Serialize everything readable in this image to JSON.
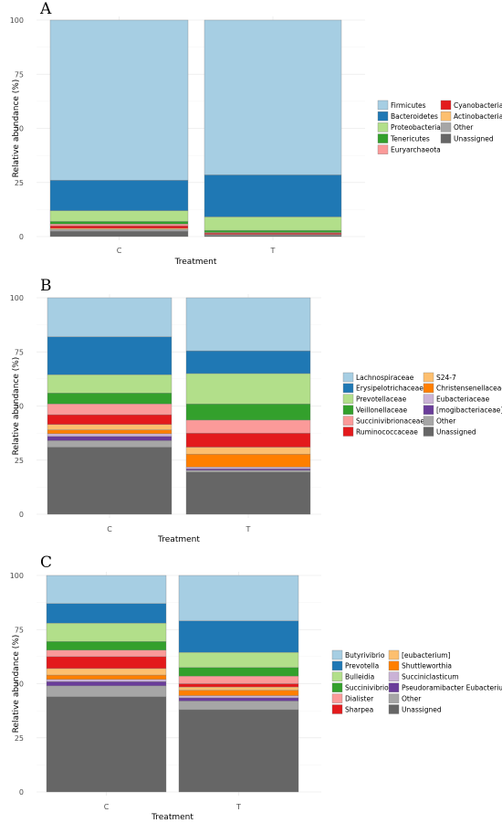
{
  "chart_data": [
    {
      "type": "bar",
      "stacked": true,
      "panel_label": "A",
      "categories": [
        "C",
        "T"
      ],
      "xlabel": "Treatment",
      "ylabel": "Relative abundance (%)",
      "ylim": [
        0,
        100
      ],
      "yticks": [
        "0",
        "25",
        "50",
        "75",
        "100"
      ],
      "grid": true,
      "legend_position": "right",
      "series": [
        {
          "name": "Unassigned",
          "color": "#666666",
          "values": [
            2.5,
            0.6
          ]
        },
        {
          "name": "Other",
          "color": "#a6a6a6",
          "values": [
            0.8,
            0.3
          ]
        },
        {
          "name": "Actinobacteria",
          "color": "#fdbf6f",
          "values": [
            0.5,
            0.1
          ]
        },
        {
          "name": "Cyanobacteria",
          "color": "#e31a1c",
          "values": [
            1.2,
            0.6
          ]
        },
        {
          "name": "Euryarchaeota",
          "color": "#fb9a99",
          "values": [
            0.8,
            0.3
          ]
        },
        {
          "name": "Tenericutes",
          "color": "#33a02c",
          "values": [
            1.2,
            1.0
          ]
        },
        {
          "name": "Proteobacteria",
          "color": "#b2df8a",
          "values": [
            5.0,
            6.2
          ]
        },
        {
          "name": "Bacteroidetes",
          "color": "#1f78b4",
          "values": [
            14.0,
            19.4
          ]
        },
        {
          "name": "Firmicutes",
          "color": "#a6cee3",
          "values": [
            74.0,
            71.5
          ]
        }
      ],
      "legend_order": [
        "Firmicutes",
        "Bacteroidetes",
        "Proteobacteria",
        "Tenericutes",
        "Euryarchaeota",
        "Cyanobacteria",
        "Actinobacteria",
        "Other",
        "Unassigned"
      ]
    },
    {
      "type": "bar",
      "stacked": true,
      "panel_label": "B",
      "categories": [
        "C",
        "T"
      ],
      "xlabel": "Treatment",
      "ylabel": "Relative abundance (%)",
      "ylim": [
        0,
        100
      ],
      "yticks": [
        "0",
        "25",
        "50",
        "75",
        "100"
      ],
      "grid": true,
      "legend_position": "right",
      "series": [
        {
          "name": "Unassigned",
          "color": "#666666",
          "values": [
            31.0,
            19.5
          ]
        },
        {
          "name": "Other",
          "color": "#a6a6a6",
          "values": [
            3.0,
            0.8
          ]
        },
        {
          "name": "[mogibacteriaceae]",
          "color": "#6a3d9a",
          "values": [
            2.0,
            0.7
          ]
        },
        {
          "name": "Eubacteriaceae",
          "color": "#cab2d6",
          "values": [
            1.2,
            0.8
          ]
        },
        {
          "name": "Christensenellaceae",
          "color": "#ff7f00",
          "values": [
            1.8,
            6.0
          ]
        },
        {
          "name": "S24-7",
          "color": "#fdbf6f",
          "values": [
            2.5,
            3.2
          ]
        },
        {
          "name": "Ruminococcaceae",
          "color": "#e31a1c",
          "values": [
            4.5,
            6.5
          ]
        },
        {
          "name": "Succinivibrionaceae",
          "color": "#fb9a99",
          "values": [
            5.0,
            6.0
          ]
        },
        {
          "name": "Veillonellaceae",
          "color": "#33a02c",
          "values": [
            5.0,
            7.5
          ]
        },
        {
          "name": "Prevotellaceae",
          "color": "#b2df8a",
          "values": [
            8.5,
            14.0
          ]
        },
        {
          "name": "Erysipelotrichaceae",
          "color": "#1f78b4",
          "values": [
            17.5,
            10.5
          ]
        },
        {
          "name": "Lachnospiraceae",
          "color": "#a6cee3",
          "values": [
            18.0,
            24.5
          ]
        }
      ],
      "legend_order": [
        "Lachnospiraceae",
        "Erysipelotrichaceae",
        "Prevotellaceae",
        "Veillonellaceae",
        "Succinivibrionaceae",
        "Ruminococcaceae",
        "S24-7",
        "Christensenellaceae",
        "Eubacteriaceae",
        "[mogibacteriaceae]",
        "Other",
        "Unassigned"
      ]
    },
    {
      "type": "bar",
      "stacked": true,
      "panel_label": "C",
      "categories": [
        "C",
        "T"
      ],
      "xlabel": "Treatment",
      "ylabel": "Relative abundance (%)",
      "ylim": [
        0,
        100
      ],
      "yticks": [
        "0",
        "25",
        "50",
        "75",
        "100"
      ],
      "grid": true,
      "legend_position": "right",
      "series": [
        {
          "name": "Unassigned",
          "color": "#666666",
          "values": [
            44.0,
            38.0
          ]
        },
        {
          "name": "Other",
          "color": "#a6a6a6",
          "values": [
            5.0,
            4.0
          ]
        },
        {
          "name": "Pseudoramibacter Eubacterium",
          "color": "#6a3d9a",
          "values": [
            2.0,
            1.5
          ]
        },
        {
          "name": "Succiniclasticum",
          "color": "#cab2d6",
          "values": [
            1.0,
            1.0
          ]
        },
        {
          "name": "Shuttleworthia",
          "color": "#ff7f00",
          "values": [
            2.0,
            2.5
          ]
        },
        {
          "name": "[eubacterium]",
          "color": "#fdbf6f",
          "values": [
            3.0,
            1.5
          ]
        },
        {
          "name": "Sharpea",
          "color": "#e31a1c",
          "values": [
            5.5,
            1.5
          ]
        },
        {
          "name": "Dialister",
          "color": "#fb9a99",
          "values": [
            3.0,
            3.5
          ]
        },
        {
          "name": "Succinivibrio",
          "color": "#33a02c",
          "values": [
            4.0,
            4.0
          ]
        },
        {
          "name": "Bulleidia",
          "color": "#b2df8a",
          "values": [
            8.5,
            7.0
          ]
        },
        {
          "name": "Prevotella",
          "color": "#1f78b4",
          "values": [
            9.0,
            14.5
          ]
        },
        {
          "name": "Butyrivibrio",
          "color": "#a6cee3",
          "values": [
            13.0,
            21.0
          ]
        }
      ],
      "legend_order": [
        "Butyrivibrio",
        "Prevotella",
        "Bulleidia",
        "Succinivibrio",
        "Dialister",
        "Sharpea",
        "[eubacterium]",
        "Shuttleworthia",
        "Succiniclasticum",
        "Pseudoramibacter Eubacterium",
        "Other",
        "Unassigned"
      ]
    }
  ]
}
